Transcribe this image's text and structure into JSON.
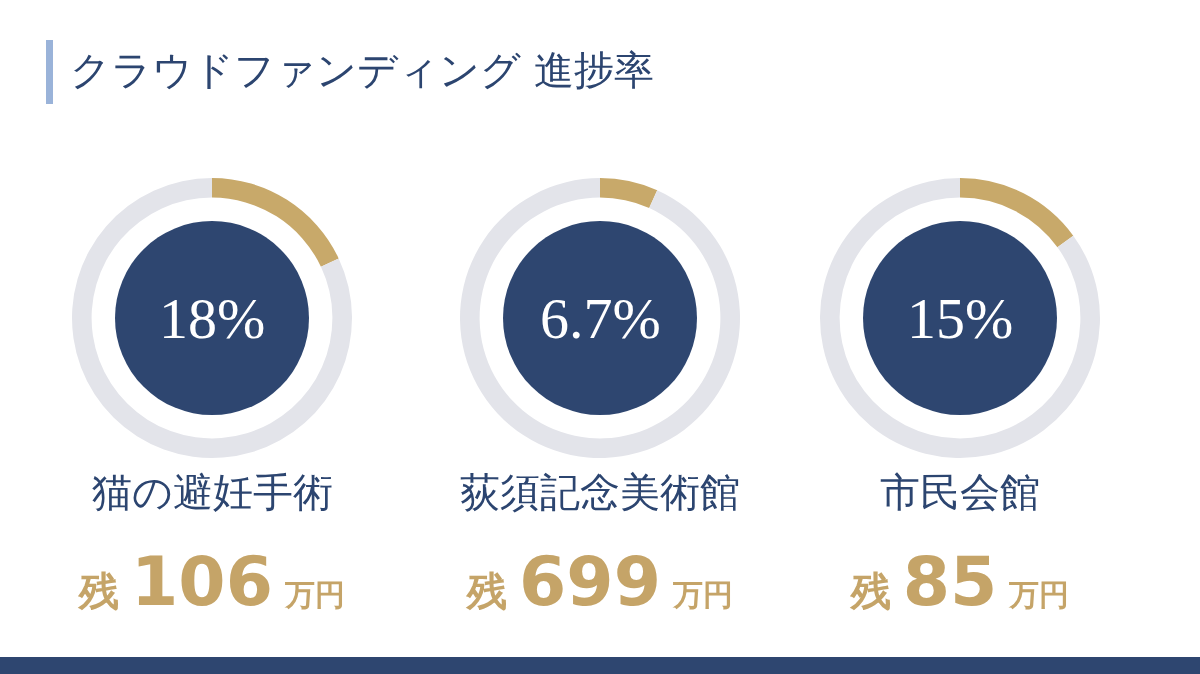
{
  "chart_data": [
    {
      "type": "other",
      "title": "クラウドファンディング 進捗率"
    },
    {
      "type": "donut",
      "title": "猫の避妊手術",
      "categories": [
        null,
        null
      ],
      "values": [
        18,
        82
      ],
      "colors": [
        "#c8a96a",
        "#e3e4ea"
      ],
      "annotations": [
        "18%",
        "残 106 万円"
      ],
      "legend": false
    },
    {
      "type": "donut",
      "title": "荻須記念美術館",
      "categories": [
        null,
        null
      ],
      "values": [
        6.7,
        93.3
      ],
      "colors": [
        "#c8a96a",
        "#e3e4ea"
      ],
      "annotations": [
        "6.7%",
        "残 699 万円"
      ],
      "legend": false
    },
    {
      "type": "donut",
      "title": "市民会館",
      "categories": [
        null,
        null
      ],
      "values": [
        15,
        85
      ],
      "colors": [
        "#c8a96a",
        "#e3e4ea"
      ],
      "annotations": [
        "15%",
        "残 85 万円"
      ],
      "legend": false
    }
  ]
}
